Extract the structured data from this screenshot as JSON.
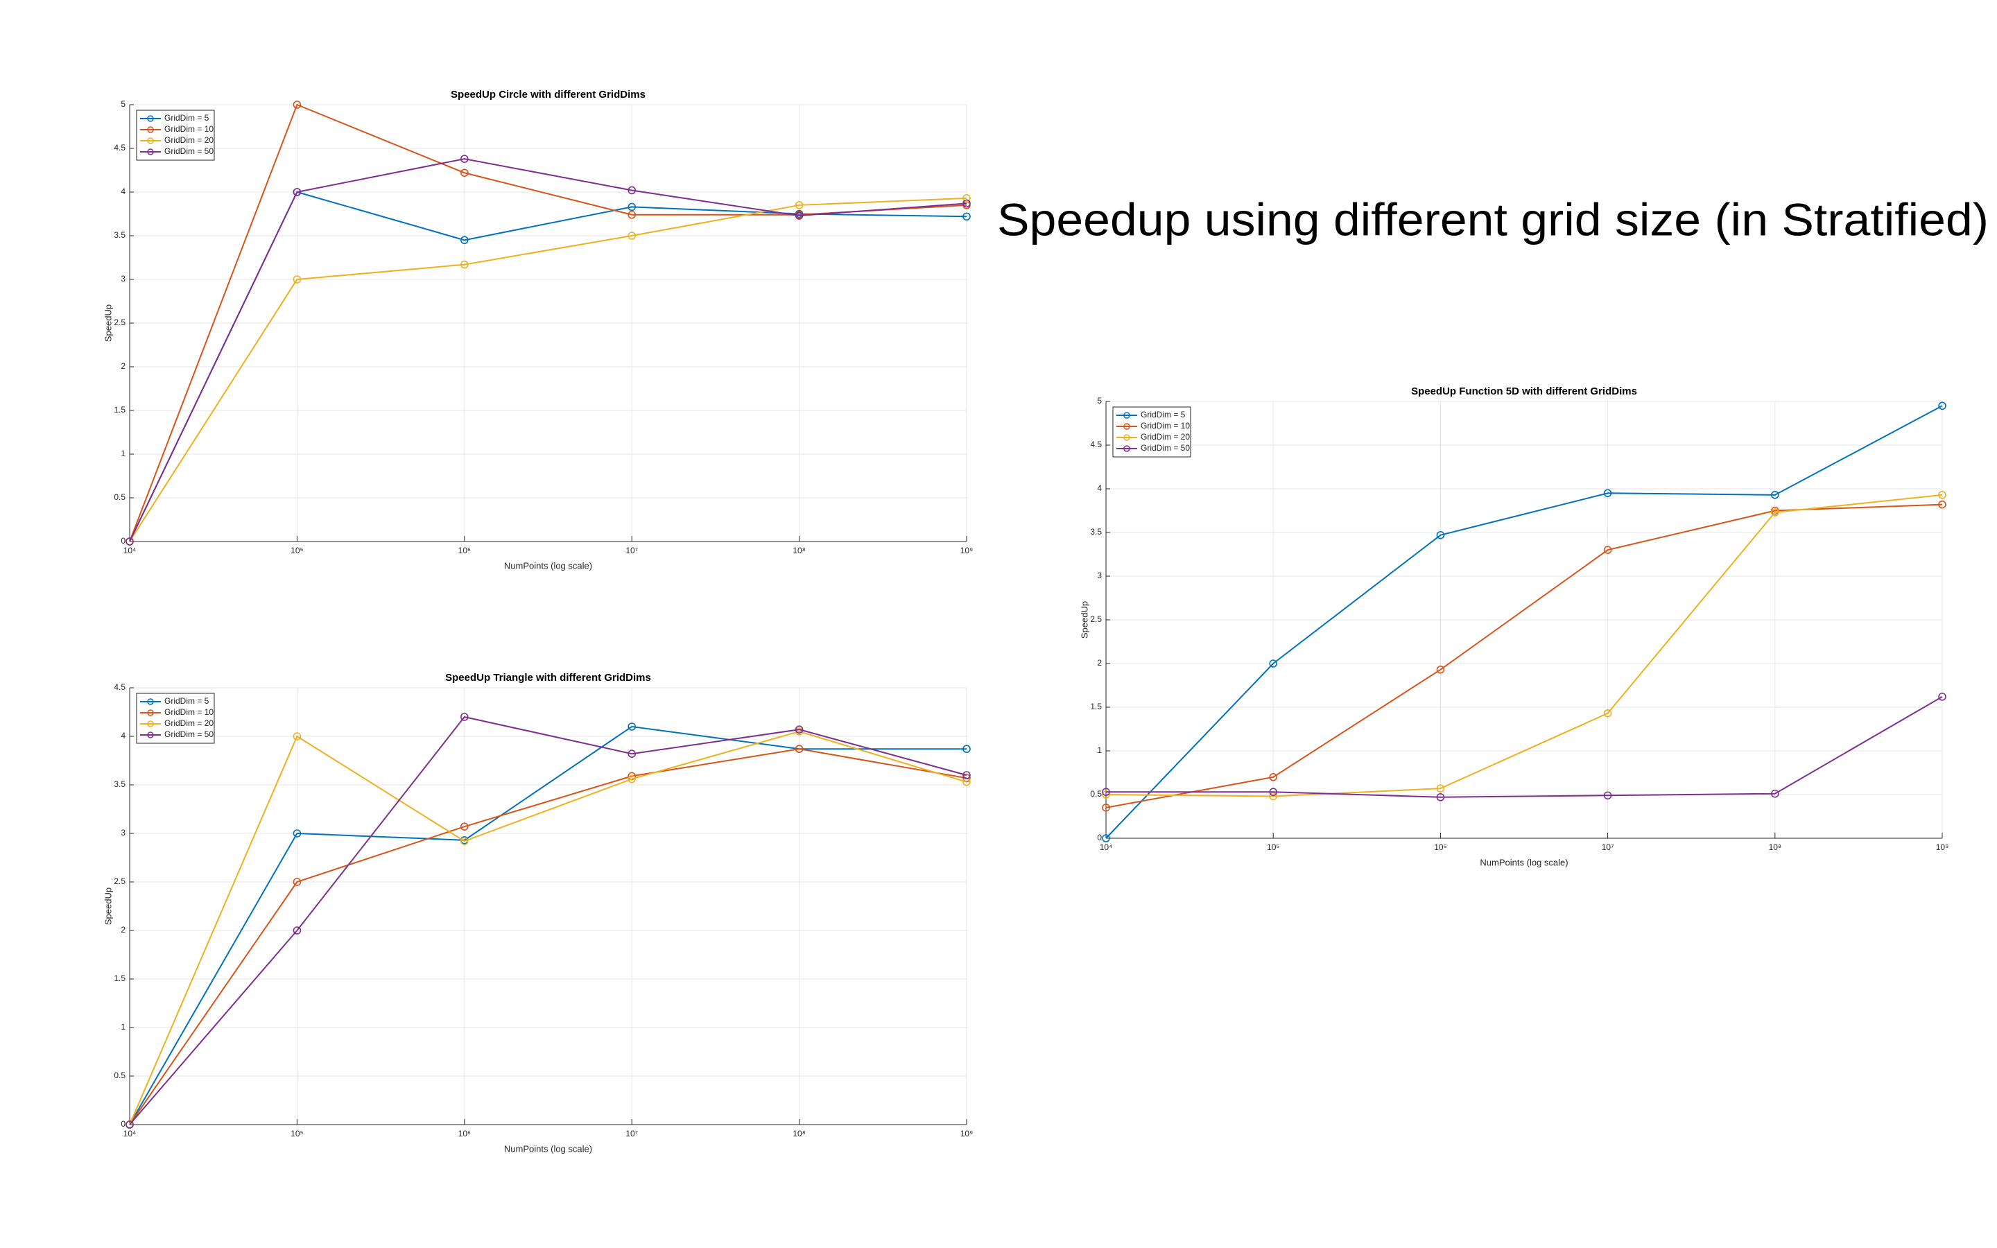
{
  "title": "Speedup using different grid size (in Stratified)",
  "chart_data": [
    {
      "type": "line",
      "title": "SpeedUp Circle with different GridDims",
      "xlabel": "NumPoints (log scale)",
      "ylabel": "SpeedUp",
      "xscale": "log",
      "grid": true,
      "legend": "northwest",
      "x": [
        10000,
        100000,
        1000000,
        10000000,
        100000000,
        1000000000
      ],
      "xlim": [
        10000,
        1000000000
      ],
      "xticks": [
        {
          "value": 10000,
          "label": "10⁴"
        },
        {
          "value": 100000,
          "label": "10⁵"
        },
        {
          "value": 1000000,
          "label": "10⁶"
        },
        {
          "value": 10000000,
          "label": "10⁷"
        },
        {
          "value": 100000000,
          "label": "10⁸"
        },
        {
          "value": 1000000000,
          "label": "10⁹"
        }
      ],
      "ylim": [
        0,
        5
      ],
      "yticks": [
        0,
        0.5,
        1,
        1.5,
        2,
        2.5,
        3,
        3.5,
        4,
        4.5,
        5
      ],
      "series": [
        {
          "name": "GridDim = 5",
          "color": "#0072bd",
          "values": [
            0,
            4.0,
            3.45,
            3.83,
            3.75,
            3.72
          ]
        },
        {
          "name": "GridDim = 10",
          "color": "#d95319",
          "values": [
            0,
            5.0,
            4.22,
            3.74,
            3.74,
            3.85
          ]
        },
        {
          "name": "GridDim = 20",
          "color": "#edb120",
          "values": [
            0,
            3.0,
            3.17,
            3.5,
            3.85,
            3.93
          ]
        },
        {
          "name": "GridDim = 50",
          "color": "#7e2f8e",
          "values": [
            0,
            4.0,
            4.38,
            4.02,
            3.73,
            3.87
          ]
        }
      ]
    },
    {
      "type": "line",
      "title": "SpeedUp Triangle with different GridDims",
      "xlabel": "NumPoints (log scale)",
      "ylabel": "SpeedUp",
      "xscale": "log",
      "grid": true,
      "legend": "northwest",
      "x": [
        10000,
        100000,
        1000000,
        10000000,
        100000000,
        1000000000
      ],
      "xlim": [
        10000,
        1000000000
      ],
      "xticks": [
        {
          "value": 10000,
          "label": "10⁴"
        },
        {
          "value": 100000,
          "label": "10⁵"
        },
        {
          "value": 1000000,
          "label": "10⁶"
        },
        {
          "value": 10000000,
          "label": "10⁷"
        },
        {
          "value": 100000000,
          "label": "10⁸"
        },
        {
          "value": 1000000000,
          "label": "10⁹"
        }
      ],
      "ylim": [
        0,
        4.5
      ],
      "yticks": [
        0,
        0.5,
        1,
        1.5,
        2,
        2.5,
        3,
        3.5,
        4,
        4.5
      ],
      "series": [
        {
          "name": "GridDim = 5",
          "color": "#0072bd",
          "values": [
            0,
            3.0,
            2.93,
            4.1,
            3.87,
            3.87
          ]
        },
        {
          "name": "GridDim = 10",
          "color": "#d95319",
          "values": [
            0,
            2.5,
            3.07,
            3.59,
            3.87,
            3.57
          ]
        },
        {
          "name": "GridDim = 20",
          "color": "#edb120",
          "values": [
            0,
            4.0,
            2.92,
            3.56,
            4.05,
            3.53
          ]
        },
        {
          "name": "GridDim = 50",
          "color": "#7e2f8e",
          "values": [
            0,
            2.0,
            4.2,
            3.82,
            4.07,
            3.6
          ]
        }
      ]
    },
    {
      "type": "line",
      "title": "SpeedUp Function 5D with different GridDims",
      "xlabel": "NumPoints (log scale)",
      "ylabel": "SpeedUp",
      "xscale": "log",
      "grid": true,
      "legend": "northwest",
      "x": [
        10000,
        100000,
        1000000,
        10000000,
        100000000,
        1000000000
      ],
      "xlim": [
        10000,
        1000000000
      ],
      "xticks": [
        {
          "value": 10000,
          "label": "10⁴"
        },
        {
          "value": 100000,
          "label": "10⁵"
        },
        {
          "value": 1000000,
          "label": "10⁶"
        },
        {
          "value": 10000000,
          "label": "10⁷"
        },
        {
          "value": 100000000,
          "label": "10⁸"
        },
        {
          "value": 1000000000,
          "label": "10⁹"
        }
      ],
      "ylim": [
        0,
        5
      ],
      "yticks": [
        0,
        0.5,
        1,
        1.5,
        2,
        2.5,
        3,
        3.5,
        4,
        4.5,
        5
      ],
      "series": [
        {
          "name": "GridDim = 5",
          "color": "#0072bd",
          "values": [
            0,
            2.0,
            3.47,
            3.95,
            3.93,
            4.95
          ]
        },
        {
          "name": "GridDim = 10",
          "color": "#d95319",
          "values": [
            0.35,
            0.7,
            1.93,
            3.3,
            3.75,
            3.82
          ]
        },
        {
          "name": "GridDim = 20",
          "color": "#edb120",
          "values": [
            0.5,
            0.48,
            0.57,
            1.43,
            3.73,
            3.93
          ]
        },
        {
          "name": "GridDim = 50",
          "color": "#7e2f8e",
          "values": [
            0.53,
            0.53,
            0.47,
            0.49,
            0.51,
            1.62
          ]
        }
      ]
    }
  ]
}
